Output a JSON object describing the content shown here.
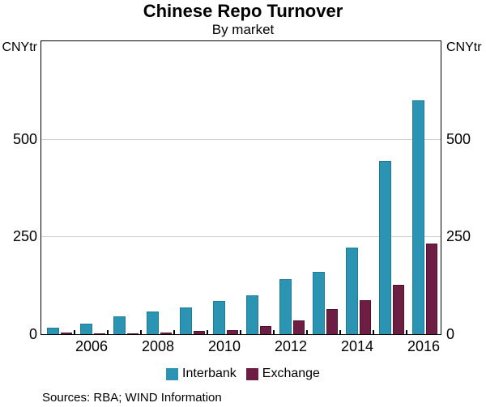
{
  "header": {
    "title": "Chinese Repo Turnover",
    "subtitle": "By market"
  },
  "axes": {
    "unit_left": "CNYtr",
    "unit_right": "CNYtr",
    "ylim": [
      0,
      750
    ],
    "yticks": [
      0,
      250,
      500
    ],
    "gridlines": [
      250,
      500
    ],
    "xtick_labels": [
      "2006",
      "2008",
      "2010",
      "2012",
      "2014",
      "2016"
    ]
  },
  "legend": {
    "items": [
      {
        "label": "Interbank",
        "color": "#2C94B3",
        "border": "#1E7C99"
      },
      {
        "label": "Exchange",
        "color": "#6E1E43",
        "border": "#4E132F"
      }
    ]
  },
  "footer": {
    "source_note": "Sources: RBA; WIND Information"
  },
  "colors": {
    "axis": "#000000",
    "gridline": "#cccccc",
    "interbank": "#2C94B3",
    "exchange": "#6E1E43"
  },
  "chart_data": {
    "type": "bar",
    "title": "Chinese Repo Turnover",
    "subtitle": "By market",
    "ylabel": "CNYtr",
    "categories": [
      2005,
      2006,
      2007,
      2008,
      2009,
      2010,
      2011,
      2012,
      2013,
      2014,
      2015,
      2016
    ],
    "series": [
      {
        "name": "Interbank",
        "color": "#2C94B3",
        "border": "#1E7C99",
        "values": [
          16,
          28,
          45,
          59,
          69,
          86,
          99,
          142,
          159,
          222,
          445,
          600
        ]
      },
      {
        "name": "Exchange",
        "color": "#6E1E43",
        "border": "#4E132F",
        "values": [
          5,
          2,
          3,
          5,
          8,
          11,
          21,
          35,
          64,
          88,
          127,
          232
        ]
      }
    ],
    "ylim": [
      0,
      750
    ],
    "yticks": [
      0,
      250,
      500
    ],
    "grid": "horizontal",
    "legend_position": "bottom"
  }
}
